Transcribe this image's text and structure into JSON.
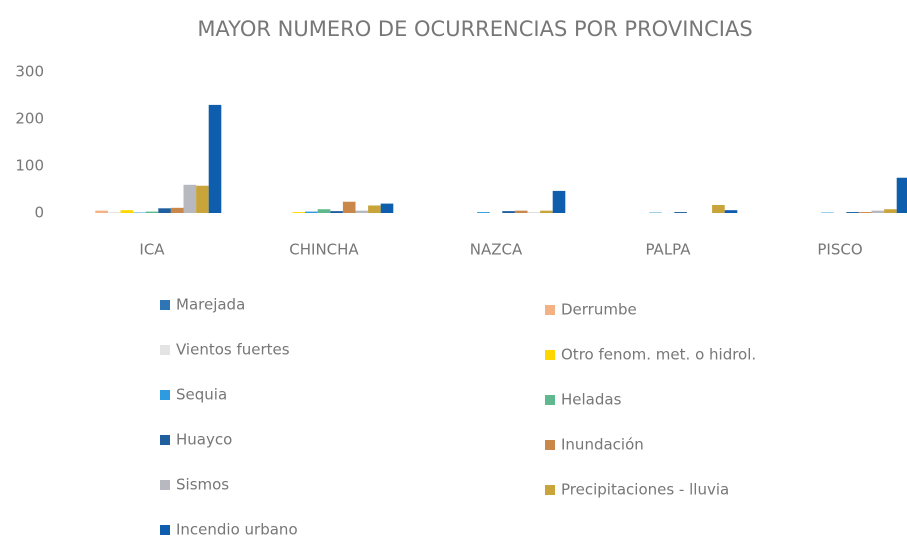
{
  "chart_data": {
    "type": "bar",
    "title": "MAYOR NUMERO DE OCURRENCIAS POR PROVINCIAS",
    "categories": [
      "ICA",
      "CHINCHA",
      "NAZCA",
      "PALPA",
      "PISCO"
    ],
    "series": [
      {
        "name": "Marejada",
        "color": "#2e75b6",
        "values": [
          0,
          0,
          0,
          0,
          0
        ]
      },
      {
        "name": "Derrumbe",
        "color": "#f4b183",
        "values": [
          5,
          0,
          0,
          0,
          0
        ]
      },
      {
        "name": "Vientos fuertes",
        "color": "#e4e4e4",
        "values": [
          2,
          0,
          0,
          0,
          0
        ]
      },
      {
        "name": "Otro fenom. met.  o hidrol.",
        "color": "#ffd700",
        "values": [
          6,
          2,
          0,
          0,
          0
        ]
      },
      {
        "name": "Sequia",
        "color": "#2e9be0",
        "values": [
          1,
          3,
          2,
          1,
          1
        ]
      },
      {
        "name": "Heladas",
        "color": "#5fb88e",
        "values": [
          3,
          8,
          0,
          0,
          0
        ]
      },
      {
        "name": "Huayco",
        "color": "#1f5f9e",
        "values": [
          10,
          4,
          4,
          2,
          2
        ]
      },
      {
        "name": "Inundación",
        "color": "#c9884a",
        "values": [
          11,
          24,
          5,
          0,
          2
        ]
      },
      {
        "name": "Sismos",
        "color": "#b8b8c0",
        "values": [
          60,
          5,
          1,
          0,
          5
        ]
      },
      {
        "name": "Precipitaciones - lluvia",
        "color": "#c8a43a",
        "values": [
          58,
          16,
          5,
          17,
          8
        ]
      },
      {
        "name": "Incendio urbano",
        "color": "#0f5dad",
        "values": [
          230,
          20,
          47,
          6,
          75
        ]
      }
    ],
    "ylim": [
      0,
      300
    ],
    "yticks": [
      0,
      100,
      200,
      300
    ],
    "grid": false
  }
}
